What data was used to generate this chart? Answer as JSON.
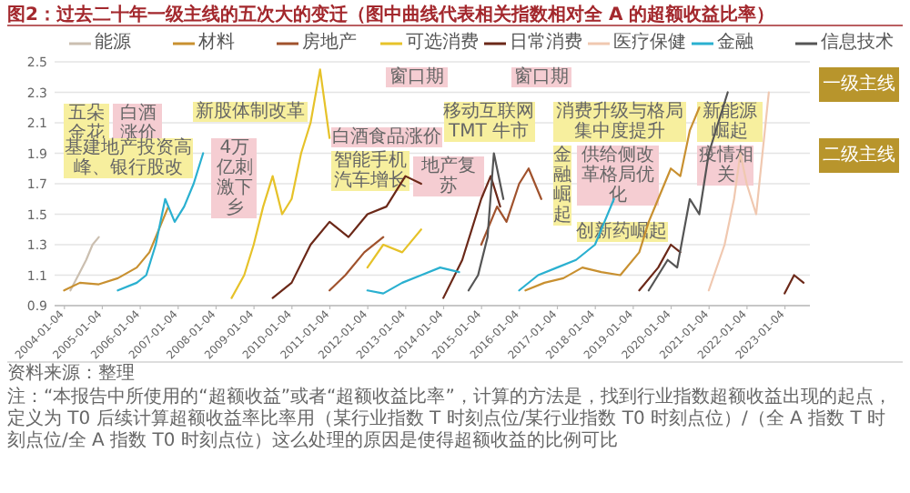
{
  "chart_data": {
    "type": "line",
    "title": "图2：过去二十年一级主线的五次大的变迁（图中曲线代表相关指数相对全 A 的超额收益比率）",
    "series": [
      {
        "name": "能源",
        "color": "#cbbfb0",
        "x": [
          "2004-03",
          "2004-06",
          "2004-08",
          "2004-10",
          "2004-12"
        ],
        "values": [
          1.0,
          1.12,
          1.2,
          1.3,
          1.35
        ]
      },
      {
        "name": "材料",
        "color": "#c89030",
        "x": [
          "2004-01",
          "2004-06",
          "2004-12",
          "2005-06",
          "2005-12",
          "2006-04",
          "2006-08",
          "2006-10",
          "2016-03",
          "2016-09",
          "2017-03",
          "2017-09",
          "2018-03",
          "2018-09",
          "2019-03",
          "2019-06",
          "2019-09",
          "2020-01",
          "2020-04",
          "2020-07",
          "2020-10"
        ],
        "values": [
          1.0,
          1.05,
          1.04,
          1.08,
          1.15,
          1.25,
          1.45,
          1.55,
          1.0,
          1.05,
          1.08,
          1.15,
          1.12,
          1.1,
          1.25,
          1.45,
          1.6,
          1.8,
          1.75,
          2.05,
          2.2
        ]
      },
      {
        "name": "房地产",
        "color": "#a0522d",
        "x": [
          "2011-01",
          "2011-06",
          "2011-12",
          "2012-06",
          "2015-01",
          "2015-06",
          "2015-09",
          "2016-01",
          "2016-04",
          "2016-08"
        ],
        "values": [
          1.0,
          1.1,
          1.25,
          1.35,
          1.3,
          1.55,
          1.45,
          1.7,
          1.8,
          1.6
        ]
      },
      {
        "name": "可选消费",
        "color": "#e6c229",
        "x": [
          "2008-06",
          "2008-10",
          "2009-01",
          "2009-04",
          "2009-07",
          "2009-10",
          "2010-01",
          "2010-04",
          "2010-07",
          "2010-10",
          "2011-01",
          "2012-01",
          "2012-06",
          "2012-12",
          "2013-06"
        ],
        "values": [
          0.95,
          1.1,
          1.3,
          1.55,
          1.75,
          1.5,
          1.6,
          1.9,
          2.1,
          2.45,
          2.0,
          1.15,
          1.3,
          1.25,
          1.4
        ]
      },
      {
        "name": "日常消费",
        "color": "#6b2818",
        "x": [
          "2009-07",
          "2010-01",
          "2010-07",
          "2011-01",
          "2011-07",
          "2012-01",
          "2012-07",
          "2013-01",
          "2013-06",
          "2014-01",
          "2014-07",
          "2015-01",
          "2015-04",
          "2015-07",
          "2019-03",
          "2019-09",
          "2020-01",
          "2020-04",
          "2023-01",
          "2023-04",
          "2023-07"
        ],
        "values": [
          0.95,
          1.05,
          1.3,
          1.45,
          1.35,
          1.5,
          1.55,
          1.75,
          1.7,
          0.95,
          1.2,
          1.6,
          1.75,
          1.55,
          1.0,
          1.15,
          1.3,
          1.25,
          0.98,
          1.1,
          1.05
        ]
      },
      {
        "name": "医疗保健",
        "color": "#f0c8b0",
        "x": [
          "2021-01",
          "2021-06",
          "2021-09",
          "2021-11",
          "2022-01",
          "2022-04",
          "2022-06",
          "2022-08"
        ],
        "values": [
          1.0,
          1.3,
          1.6,
          1.9,
          1.7,
          1.5,
          1.9,
          2.3
        ]
      },
      {
        "name": "金融",
        "color": "#2ab0d0",
        "x": [
          "2005-06",
          "2005-12",
          "2006-03",
          "2006-06",
          "2006-09",
          "2006-12",
          "2007-03",
          "2007-06",
          "2007-09",
          "2012-01",
          "2012-06",
          "2012-12",
          "2013-06",
          "2013-12",
          "2014-06",
          "2016-01",
          "2016-07",
          "2017-01",
          "2017-07",
          "2018-01",
          "2018-04",
          "2018-07"
        ],
        "values": [
          1.0,
          1.05,
          1.1,
          1.3,
          1.6,
          1.45,
          1.55,
          1.7,
          1.9,
          1.0,
          0.98,
          1.05,
          1.1,
          1.15,
          1.12,
          1.0,
          1.1,
          1.15,
          1.2,
          1.3,
          1.45,
          1.6
        ]
      },
      {
        "name": "信息技术",
        "color": "#555555",
        "x": [
          "2014-09",
          "2014-12",
          "2015-03",
          "2015-05",
          "2015-08",
          "2019-06",
          "2019-12",
          "2020-03",
          "2020-07",
          "2020-10",
          "2021-01",
          "2021-04",
          "2021-07"
        ],
        "values": [
          1.0,
          1.1,
          1.35,
          1.9,
          1.6,
          1.0,
          1.2,
          1.15,
          1.6,
          1.5,
          1.9,
          2.1,
          2.3
        ]
      }
    ],
    "xlim": [
      "2003-10",
      "2023-09"
    ],
    "xticks": [
      "2004-01-04",
      "2005-01-04",
      "2006-01-04",
      "2007-01-04",
      "2008-01-04",
      "2009-01-04",
      "2010-01-04",
      "2011-01-04",
      "2012-01-04",
      "2013-01-04",
      "2014-01-04",
      "2015-01-04",
      "2016-01-04",
      "2017-01-04",
      "2018-01-04",
      "2019-01-04",
      "2020-01-04",
      "2021-01-04",
      "2022-01-04",
      "2023-01-04"
    ],
    "ylim": [
      0.9,
      2.5
    ],
    "yticks": [
      0.9,
      1.1,
      1.3,
      1.5,
      1.7,
      1.9,
      2.1,
      2.3,
      2.5
    ],
    "grid": "y",
    "legend": "top",
    "marker": "none",
    "line_style": "solid",
    "annotations": [
      "五朵金花",
      "白酒涨价",
      "新股体制改革",
      "基建地产投资高峰、银行股改",
      "4万亿刺激下乡",
      "白酒食品涨价",
      "智能手机",
      "汽车增长",
      "移动互联网 TMT 牛市",
      "地产复苏",
      "消费升级与格局集中度提升",
      "金融崛起",
      "供给侧改革格局优化",
      "创新药崛起",
      "新能源崛起",
      "疫情相关",
      "窗口期",
      "窗口期",
      "一级主线",
      "二级主线",
      "资料来源：整理",
      "注：“本报告中所使用的“超额收益”或者“超额收益比率”，计算的方法是，找到行业指数超额收益出现的起点，定义为 T0 后续计算超额收益率比率用（某行业指数 T 时刻点位/某行业指数 T0 时刻点位）/（全 A 指数 T 时刻点位/全 A 指数 T0 时刻点位）这么处理的原因是使得超额收益的比例可比"
    ]
  }
}
